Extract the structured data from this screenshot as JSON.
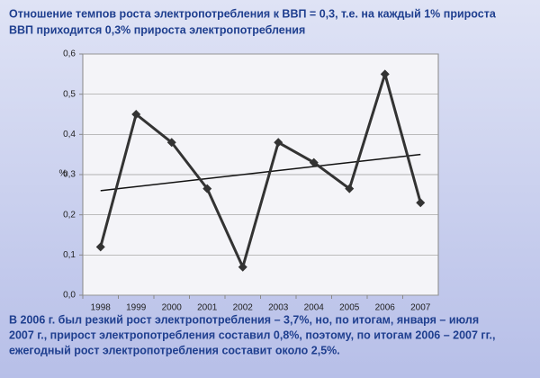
{
  "chart_data": {
    "type": "line",
    "title_lines": [
      "Отношение темпов роста электропотребления к ВВП = 0,3, т.е. на каждый 1% прироста",
      "ВВП приходится 0,3% прироста электропотребления"
    ],
    "y_label": "%",
    "categories": [
      "1998",
      "1999",
      "2000",
      "2001",
      "2002",
      "2003",
      "2004",
      "2005",
      "2006",
      "2007"
    ],
    "values": [
      0.12,
      0.45,
      0.38,
      0.265,
      0.07,
      0.38,
      0.33,
      0.265,
      0.55,
      0.23
    ],
    "color": "#333333",
    "trend_values": [
      0.26,
      0.35
    ],
    "ylim": [
      0,
      0.6
    ],
    "yticks": [
      {
        "value": 0,
        "label": "0,0"
      },
      {
        "value": 0.1,
        "label": "0,1"
      },
      {
        "value": 0.2,
        "label": "0,2"
      },
      {
        "value": 0.3,
        "label": "0,3"
      },
      {
        "value": 0.4,
        "label": "0,4"
      },
      {
        "value": 0.5,
        "label": "0,5"
      },
      {
        "value": 0.6,
        "label": "0,6"
      }
    ],
    "grid": true,
    "note_lines": [
      "В 2006 г. был резкий рост электропотребления – 3,7%, но, по итогам, января – июля",
      "2007 г., прирост электропотребления составил 0,8%, поэтому, по итогам 2006 – 2007 гг.,",
      "ежегодный рост электропотребления  составит около 2,5%."
    ]
  }
}
